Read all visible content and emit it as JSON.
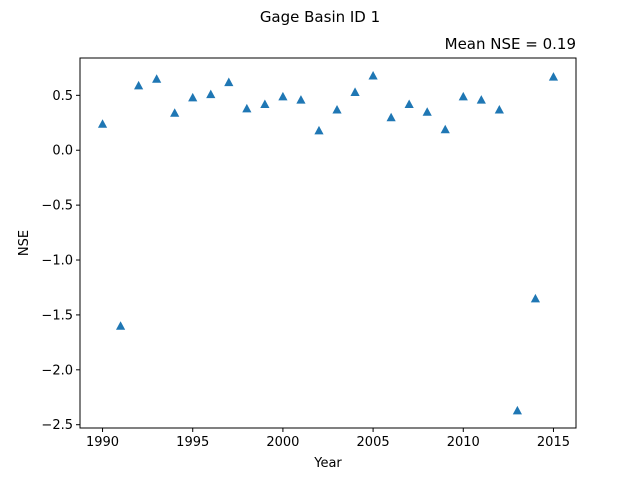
{
  "chart_data": {
    "type": "scatter",
    "suptitle": "Gage Basin ID 1",
    "title_right": "Mean NSE = 0.19",
    "xlabel": "Year",
    "ylabel": "NSE",
    "marker": "triangle-up",
    "marker_color": "#1f77b4",
    "xlim": [
      1988.75,
      2016.25
    ],
    "ylim": [
      -2.53,
      0.84
    ],
    "xticks": [
      1990,
      1995,
      2000,
      2005,
      2010,
      2015
    ],
    "xtick_labels": [
      "1990",
      "1995",
      "2000",
      "2005",
      "2010",
      "2015"
    ],
    "yticks": [
      0.5,
      0.0,
      -0.5,
      -1.0,
      -1.5,
      -2.0,
      -2.5
    ],
    "ytick_labels": [
      "0.5",
      "0.0",
      "−0.5",
      "−1.0",
      "−1.5",
      "−2.0",
      "−2.5"
    ],
    "grid": false,
    "points": [
      {
        "x": 1990,
        "y": 0.24
      },
      {
        "x": 1991,
        "y": -1.6
      },
      {
        "x": 1992,
        "y": 0.59
      },
      {
        "x": 1993,
        "y": 0.65
      },
      {
        "x": 1994,
        "y": 0.34
      },
      {
        "x": 1995,
        "y": 0.48
      },
      {
        "x": 1996,
        "y": 0.51
      },
      {
        "x": 1997,
        "y": 0.62
      },
      {
        "x": 1998,
        "y": 0.38
      },
      {
        "x": 1999,
        "y": 0.42
      },
      {
        "x": 2000,
        "y": 0.49
      },
      {
        "x": 2001,
        "y": 0.46
      },
      {
        "x": 2002,
        "y": 0.18
      },
      {
        "x": 2003,
        "y": 0.37
      },
      {
        "x": 2004,
        "y": 0.53
      },
      {
        "x": 2005,
        "y": 0.68
      },
      {
        "x": 2006,
        "y": 0.3
      },
      {
        "x": 2007,
        "y": 0.42
      },
      {
        "x": 2008,
        "y": 0.35
      },
      {
        "x": 2009,
        "y": 0.19
      },
      {
        "x": 2010,
        "y": 0.49
      },
      {
        "x": 2011,
        "y": 0.46
      },
      {
        "x": 2012,
        "y": 0.37
      },
      {
        "x": 2013,
        "y": -2.37
      },
      {
        "x": 2014,
        "y": -1.35
      },
      {
        "x": 2015,
        "y": 0.67
      }
    ]
  }
}
